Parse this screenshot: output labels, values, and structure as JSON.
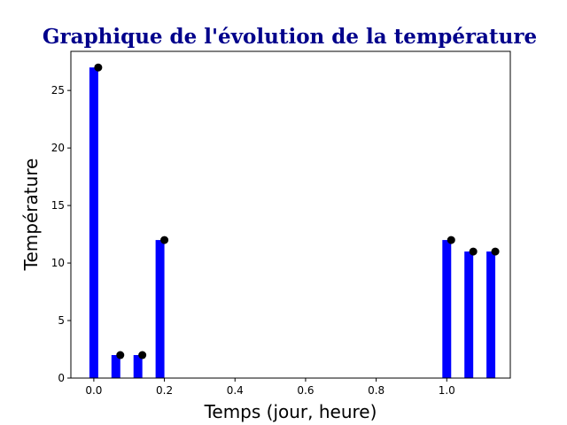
{
  "chart_data": {
    "type": "bar",
    "title": "Graphique de l'évolution de la température",
    "xlabel": "Temps (jour, heure)",
    "ylabel": "Température",
    "xlim": [
      -0.065,
      1.18
    ],
    "ylim": [
      0,
      28.4
    ],
    "xticks": [
      0.0,
      0.2,
      0.4,
      0.6,
      0.8,
      1.0
    ],
    "xtick_labels": [
      "0.0",
      "0.2",
      "0.4",
      "0.6",
      "0.8",
      "1.0"
    ],
    "yticks": [
      0,
      5,
      10,
      15,
      20,
      25
    ],
    "ytick_labels": [
      "0",
      "5",
      "10",
      "15",
      "20",
      "25"
    ],
    "bar_color": "#0000ff",
    "marker_color": "#000000",
    "title_color": "#00008b",
    "grid": false,
    "bar_width": 0.025,
    "series": [
      {
        "bars": [
          {
            "x": 0.0,
            "value": 27
          },
          {
            "x": 0.0625,
            "value": 2
          },
          {
            "x": 0.125,
            "value": 2
          },
          {
            "x": 0.1875,
            "value": 12
          },
          {
            "x": 1.0,
            "value": 12
          },
          {
            "x": 1.0625,
            "value": 11
          },
          {
            "x": 1.125,
            "value": 11
          }
        ],
        "markers": [
          {
            "x": 0.0125,
            "value": 27
          },
          {
            "x": 0.075,
            "value": 2
          },
          {
            "x": 0.1375,
            "value": 2
          },
          {
            "x": 0.2,
            "value": 12
          },
          {
            "x": 1.0125,
            "value": 12
          },
          {
            "x": 1.075,
            "value": 11
          },
          {
            "x": 1.1375,
            "value": 11
          }
        ]
      }
    ]
  }
}
